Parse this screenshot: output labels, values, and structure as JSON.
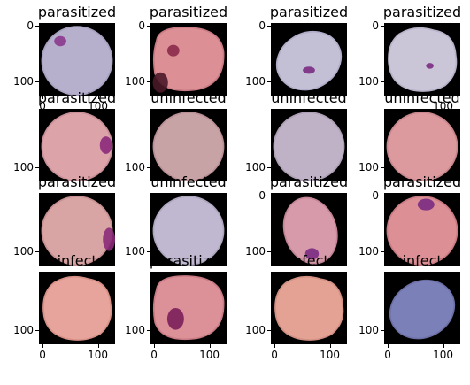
{
  "colors": {
    "background": "#ffffff",
    "image_frame": "#000000"
  },
  "panels": [
    {
      "title": "parasitized",
      "yticks": [
        "0",
        "100"
      ],
      "xticks": [
        "0",
        "100"
      ],
      "cell": {
        "shape": "circle",
        "fill": "#b7b0cc",
        "edge": "#a7a0bf"
      },
      "spots": [
        {
          "color": "#8b3a8e"
        }
      ]
    },
    {
      "title": "parasitized",
      "yticks": [
        "0",
        "100"
      ],
      "xticks": [],
      "cell": {
        "shape": "wide",
        "fill": "#dc8f95",
        "edge": "#c97b84"
      },
      "spots": [
        {
          "color": "#8a2a4a"
        },
        {
          "color": "#4a1828"
        }
      ]
    },
    {
      "title": "parasitized",
      "yticks": [
        "0",
        "100"
      ],
      "xticks": [],
      "cell": {
        "shape": "tilted",
        "fill": "#c3c0d6",
        "edge": "#b0adc8"
      },
      "spots": [
        {
          "color": "#7a2c82"
        }
      ]
    },
    {
      "title": "parasitized",
      "yticks": [
        "0",
        "100"
      ],
      "xticks": [
        "100"
      ],
      "cell": {
        "shape": "blob",
        "fill": "#cbc5d8",
        "edge": "#b8b2c8"
      },
      "spots": [
        {
          "color": "#7a2c82"
        }
      ]
    },
    {
      "title": "parasitized",
      "yticks": [
        "100"
      ],
      "xticks": [],
      "cell": {
        "shape": "circle",
        "fill": "#dca3a9",
        "edge": "#c98f98"
      },
      "spots": [
        {
          "color": "#8b2a7a"
        }
      ]
    },
    {
      "title": "uninfected",
      "yticks": [
        "100"
      ],
      "xticks": [],
      "cell": {
        "shape": "circle",
        "fill": "#c8a3a6",
        "edge": "#b88f94"
      },
      "spots": []
    },
    {
      "title": "uninfected",
      "yticks": [
        "100"
      ],
      "xticks": [],
      "cell": {
        "shape": "circle",
        "fill": "#c0b2c6",
        "edge": "#ad9fb5"
      },
      "spots": []
    },
    {
      "title": "uninfected",
      "yticks": [
        "100"
      ],
      "xticks": [],
      "cell": {
        "shape": "circle",
        "fill": "#dc9a9e",
        "edge": "#c8878c"
      },
      "spots": []
    },
    {
      "title": "parasitized",
      "yticks": [
        "100"
      ],
      "xticks": [],
      "cell": {
        "shape": "circle",
        "fill": "#d8a4a4",
        "edge": "#c69092"
      },
      "spots": [
        {
          "color": "#8b2a7a"
        }
      ]
    },
    {
      "title": "uninfected",
      "yticks": [
        "100"
      ],
      "xticks": [],
      "cell": {
        "shape": "circle",
        "fill": "#c0b8d0",
        "edge": "#aea6be"
      },
      "spots": []
    },
    {
      "title": "parasitized",
      "yticks": [
        "0",
        "100"
      ],
      "xticks": [],
      "cell": {
        "shape": "oval",
        "fill": "#d69aaa",
        "edge": "#c38596"
      },
      "spots": [
        {
          "color": "#7a2c82"
        }
      ]
    },
    {
      "title": "parasitized",
      "yticks": [
        "0",
        "100"
      ],
      "xticks": [],
      "cell": {
        "shape": "circle",
        "fill": "#dc8f95",
        "edge": "#c97b84"
      },
      "spots": [
        {
          "color": "#7a2c82"
        }
      ]
    },
    {
      "title": "uninfected",
      "yticks": [
        "100"
      ],
      "xticks": [
        "0",
        "100"
      ],
      "cell": {
        "shape": "blob",
        "fill": "#e7a49c",
        "edge": "#d69086"
      },
      "spots": []
    },
    {
      "title": "parasitized",
      "yticks": [
        "100"
      ],
      "xticks": [
        "0",
        "100"
      ],
      "cell": {
        "shape": "wide",
        "fill": "#dc9098",
        "edge": "#c97b84"
      },
      "spots": [
        {
          "color": "#7a1f5a"
        }
      ]
    },
    {
      "title": "uninfected",
      "yticks": [
        "100"
      ],
      "xticks": [
        "0",
        "100"
      ],
      "cell": {
        "shape": "blob",
        "fill": "#e4a294",
        "edge": "#d29083"
      },
      "spots": []
    },
    {
      "title": "uninfected",
      "yticks": [
        "100"
      ],
      "xticks": [
        "0",
        "100"
      ],
      "cell": {
        "shape": "tilted",
        "fill": "#7c80b8",
        "edge": "#6d70a6"
      },
      "spots": []
    }
  ]
}
